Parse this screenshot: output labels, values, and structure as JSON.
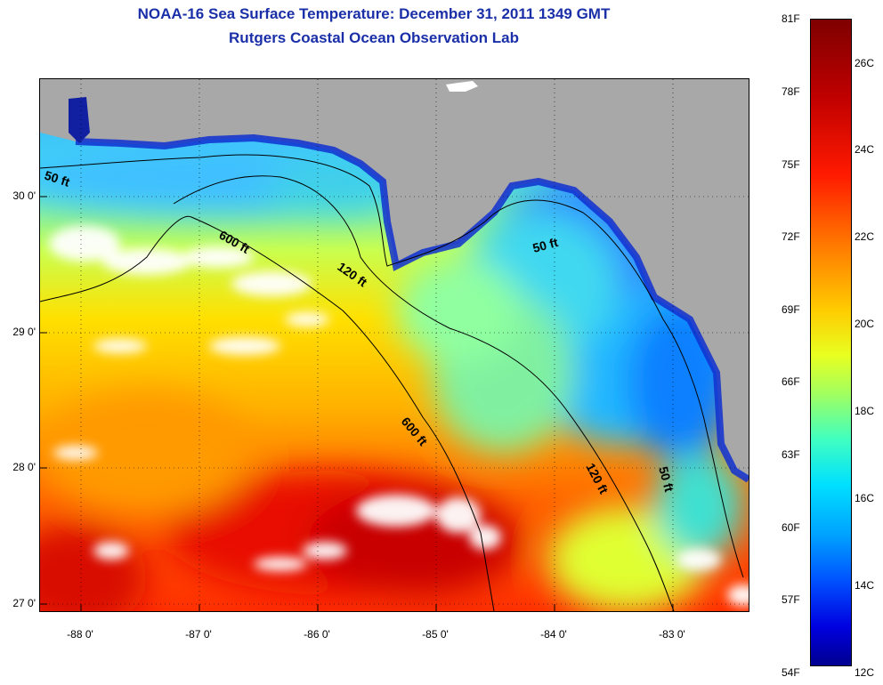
{
  "title": "NOAA-16 Sea Surface Temperature:  December 31, 2011 1349 GMT",
  "subtitle": "Rutgers Coastal Ocean Observation Lab",
  "map": {
    "lat_labels": [
      "30 0'",
      "29 0'",
      "28 0'",
      "27 0'"
    ],
    "lon_labels": [
      "-88 0'",
      "-87 0'",
      "-86 0'",
      "-85 0'",
      "-84 0'",
      "-83 0'"
    ],
    "contour_labels": [
      "50 ft",
      "600 ft",
      "120 ft",
      "50 ft",
      "600 ft",
      "120 ft",
      "50 ft"
    ],
    "colors": {
      "land": "#a8a8a8",
      "cloud": "#ffffff",
      "contour": "#000000"
    }
  },
  "colorbar": {
    "fahrenheit_labels": [
      "81F",
      "78F",
      "75F",
      "72F",
      "69F",
      "66F",
      "63F",
      "60F",
      "57F",
      "54F"
    ],
    "celsius_labels": [
      "26C",
      "24C",
      "22C",
      "20C",
      "18C",
      "16C",
      "14C",
      "12C"
    ],
    "colors": [
      "#7f0000",
      "#c00000",
      "#ff1a00",
      "#ff7a00",
      "#ffcc00",
      "#e8ff20",
      "#a0ff60",
      "#40ffc0",
      "#00e0ff",
      "#00a0ff",
      "#0050ff",
      "#0000e0",
      "#00008f"
    ]
  }
}
